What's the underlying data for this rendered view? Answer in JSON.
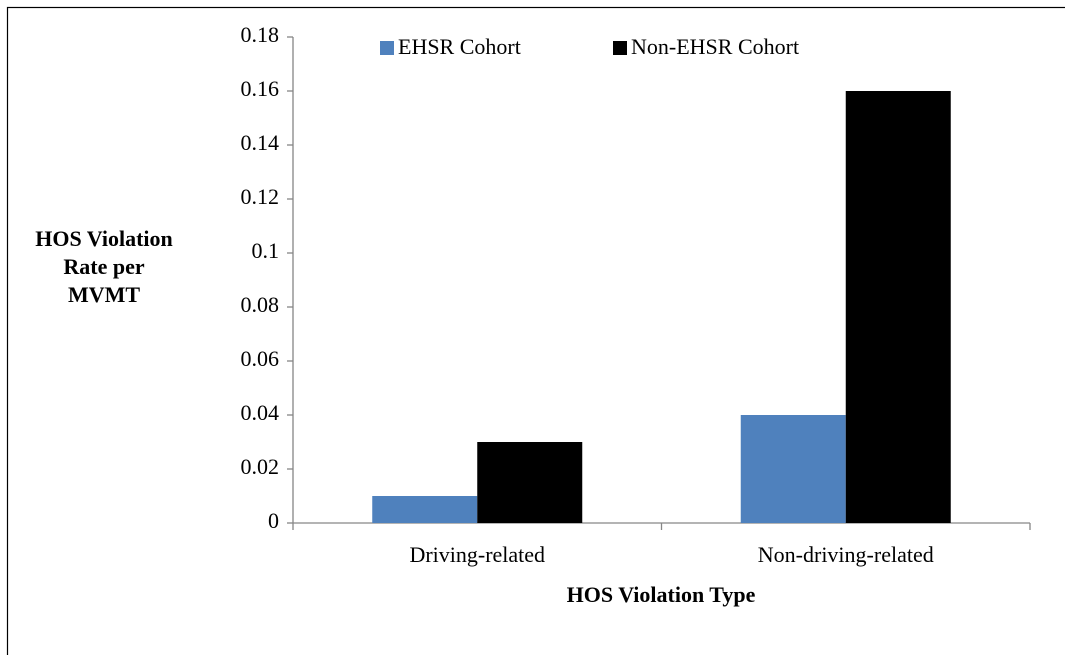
{
  "chart_data": {
    "type": "bar",
    "xlabel": "HOS Violation Type",
    "ylabel": [
      "HOS Violation",
      "Rate per",
      "MVMT"
    ],
    "categories": [
      "Driving-related",
      "Non-driving-related"
    ],
    "series": [
      {
        "name": "EHSR Cohort",
        "color": "#4f81bd",
        "values": [
          0.01,
          0.04
        ]
      },
      {
        "name": "Non-EHSR Cohort",
        "color": "#000000",
        "values": [
          0.03,
          0.16
        ]
      }
    ],
    "ylim": [
      0,
      0.18
    ],
    "yticks": [
      0,
      0.02,
      0.04,
      0.06,
      0.08,
      0.1,
      0.12,
      0.14,
      0.16,
      0.18
    ],
    "grid": false,
    "legend": "top"
  }
}
